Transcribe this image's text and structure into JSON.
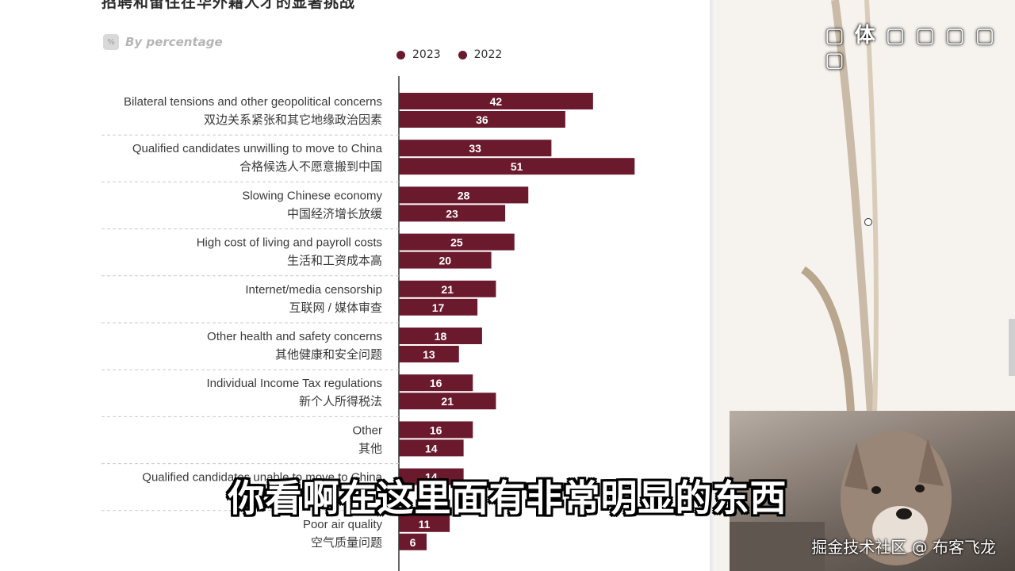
{
  "slide": {
    "title": "招聘和留住在华外籍人才的显著挑战",
    "unit_label": "By percentage"
  },
  "chart_data": {
    "type": "bar",
    "orientation": "horizontal",
    "title": "招聘和留住在华外籍人才的显著挑战",
    "subtitle": "By percentage",
    "categories": [
      {
        "en": "Bilateral tensions and other geopolitical concerns",
        "zh": "双边关系紧张和其它地缘政治因素"
      },
      {
        "en": "Qualified candidates unwilling to move to China",
        "zh": "合格候选人不愿意搬到中国"
      },
      {
        "en": "Slowing Chinese economy",
        "zh": "中国经济增长放缓"
      },
      {
        "en": "High cost of living and payroll costs",
        "zh": "生活和工资成本高"
      },
      {
        "en": "Internet/media censorship",
        "zh": "互联网 / 媒体审查"
      },
      {
        "en": "Other health and safety concerns",
        "zh": "其他健康和安全问题"
      },
      {
        "en": "Individual Income Tax regulations",
        "zh": "新个人所得税法"
      },
      {
        "en": "Other",
        "zh": "其他"
      },
      {
        "en": "Qualified candidates unable to move to China",
        "zh": ""
      },
      {
        "en": "Poor air quality",
        "zh": "空气质量问题"
      }
    ],
    "series": [
      {
        "name": "2023",
        "color": "#6b1a2e",
        "values": [
          42,
          33,
          28,
          25,
          21,
          18,
          16,
          16,
          14,
          11
        ]
      },
      {
        "name": "2022",
        "color": "#6b1a2e",
        "values": [
          36,
          51,
          23,
          20,
          17,
          13,
          21,
          14,
          null,
          6
        ]
      }
    ],
    "xlim": [
      0,
      60
    ],
    "legend_position": "top",
    "grid": false
  },
  "overlay": {
    "subtitle": "你看啊在这里面有非常明显的东西",
    "watermark": "掘金技术社区 @ 布客飞龙",
    "top_text": "▢ 体 ▢ ▢ ▢ ▢ ▢"
  }
}
